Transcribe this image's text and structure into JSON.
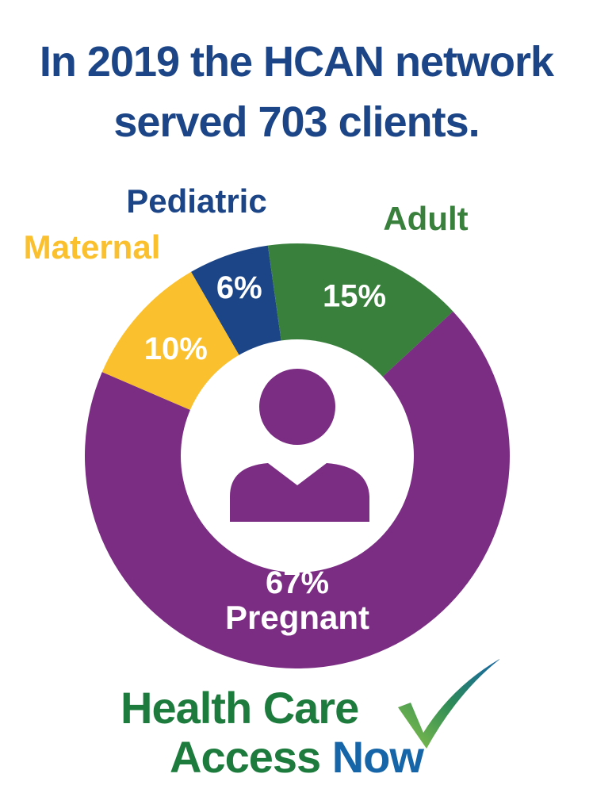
{
  "title": {
    "line1": "In 2019 the HCAN network",
    "line2": "served 703 clients."
  },
  "chart_data": {
    "type": "pie",
    "categories": [
      "Pediatric",
      "Adult",
      "Pregnant",
      "Maternal"
    ],
    "values": [
      6,
      15,
      67,
      10
    ],
    "labels": [
      "6%",
      "15%",
      "67%",
      "10%"
    ],
    "colors": [
      "#1c4587",
      "#38803c",
      "#7b2c83",
      "#fbc02d"
    ],
    "label_colors": [
      "#1c4587",
      "#38803c",
      "#ffffff",
      "#fbc02d"
    ],
    "center_icon": "person-icon"
  },
  "logo": {
    "line1_a": "Health ",
    "line1_b": "Care",
    "line2_a": "Access ",
    "line2_b": "Now",
    "green": "#1e7b3e",
    "blue": "#1565a8",
    "check_icon": "checkmark-icon"
  }
}
